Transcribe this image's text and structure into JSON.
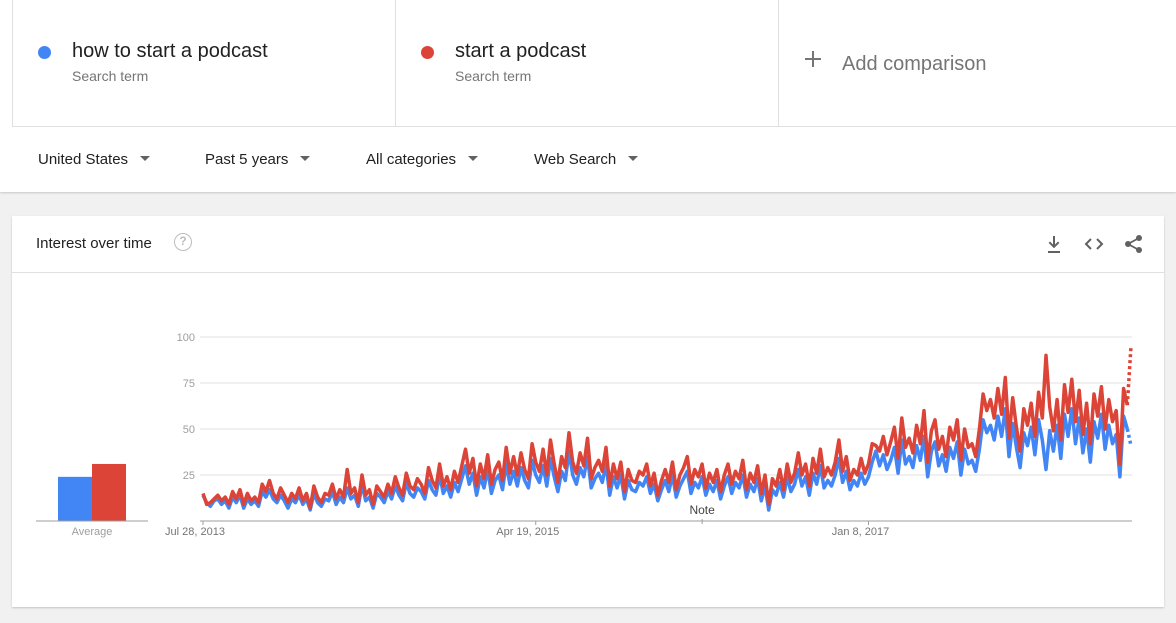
{
  "terms": [
    {
      "name": "how to start a podcast",
      "sub": "Search term",
      "color": "#4285f4"
    },
    {
      "name": "start a podcast",
      "sub": "Search term",
      "color": "#db4437"
    }
  ],
  "add_comparison": "Add comparison",
  "filters": {
    "region": "United States",
    "time": "Past 5 years",
    "category": "All categories",
    "search_type": "Web Search"
  },
  "card": {
    "title": "Interest over time",
    "help_glyph": "?",
    "tools": [
      "download-icon",
      "embed-code-icon",
      "share-icon"
    ]
  },
  "chart_data": {
    "type": "line",
    "y_ticks": [
      25,
      50,
      75,
      100
    ],
    "ylim": [
      0,
      100
    ],
    "x_ticks": [
      {
        "label": "Jul 28, 2013",
        "x": 0
      },
      {
        "label": "Apr 19, 2015",
        "x": 90
      },
      {
        "label": "Jan 8, 2017",
        "x": 180
      }
    ],
    "annotation": {
      "label": "Note",
      "x": 135
    },
    "average": {
      "label": "Average",
      "values": [
        {
          "name": "how to start a podcast",
          "value": 24
        },
        {
          "name": "start a podcast",
          "value": 31
        }
      ]
    },
    "series": [
      {
        "name": "how to start a podcast",
        "color": "#4285f4",
        "values": [
          14,
          10,
          8,
          11,
          12,
          9,
          11,
          7,
          13,
          10,
          14,
          7,
          12,
          9,
          11,
          8,
          16,
          13,
          17,
          12,
          10,
          14,
          11,
          7,
          12,
          10,
          14,
          9,
          12,
          6,
          15,
          10,
          8,
          12,
          11,
          16,
          9,
          13,
          10,
          18,
          12,
          14,
          8,
          20,
          11,
          13,
          7,
          15,
          13,
          10,
          16,
          12,
          19,
          14,
          11,
          21,
          15,
          13,
          18,
          16,
          12,
          22,
          17,
          14,
          25,
          15,
          19,
          13,
          21,
          16,
          23,
          30,
          20,
          26,
          14,
          24,
          18,
          28,
          15,
          22,
          25,
          17,
          31,
          20,
          27,
          19,
          29,
          22,
          18,
          33,
          25,
          21,
          30,
          19,
          34,
          24,
          16,
          27,
          22,
          38,
          25,
          20,
          29,
          24,
          35,
          18,
          23,
          26,
          21,
          31,
          14,
          24,
          18,
          25,
          12,
          22,
          17,
          16,
          21,
          19,
          24,
          15,
          20,
          11,
          17,
          22,
          16,
          25,
          13,
          19,
          23,
          27,
          15,
          21,
          18,
          24,
          14,
          20,
          16,
          22,
          12,
          19,
          24,
          15,
          21,
          18,
          25,
          13,
          20,
          16,
          23,
          11,
          19,
          6,
          17,
          14,
          21,
          13,
          24,
          16,
          20,
          28,
          19,
          24,
          14,
          26,
          20,
          30,
          18,
          22,
          19,
          25,
          34,
          21,
          27,
          17,
          22,
          19,
          26,
          20,
          24,
          32,
          38,
          30,
          36,
          28,
          33,
          40,
          26,
          44,
          31,
          35,
          29,
          41,
          33,
          46,
          24,
          38,
          43,
          30,
          36,
          27,
          40,
          34,
          43,
          25,
          39,
          31,
          33,
          27,
          39,
          55,
          48,
          52,
          44,
          57,
          46,
          61,
          35,
          53,
          40,
          29,
          48,
          41,
          51,
          36,
          55,
          44,
          28,
          49,
          38,
          52,
          34,
          58,
          46,
          61,
          42,
          56,
          37,
          50,
          32,
          54,
          45,
          58,
          39,
          52,
          42,
          47,
          24,
          57,
          50,
          41
        ]
      },
      {
        "name": "start a podcast",
        "color": "#db4437",
        "values": [
          15,
          9,
          10,
          12,
          14,
          11,
          13,
          9,
          16,
          12,
          17,
          9,
          15,
          11,
          13,
          10,
          20,
          16,
          22,
          15,
          12,
          18,
          14,
          10,
          15,
          12,
          18,
          11,
          15,
          7,
          19,
          13,
          10,
          15,
          14,
          20,
          12,
          17,
          13,
          28,
          15,
          18,
          10,
          25,
          14,
          17,
          9,
          19,
          16,
          13,
          20,
          15,
          24,
          18,
          14,
          26,
          19,
          17,
          23,
          20,
          15,
          29,
          22,
          18,
          31,
          19,
          24,
          17,
          27,
          21,
          30,
          39,
          26,
          34,
          19,
          31,
          23,
          36,
          20,
          28,
          32,
          22,
          40,
          26,
          35,
          25,
          37,
          28,
          23,
          42,
          32,
          27,
          39,
          25,
          44,
          31,
          21,
          35,
          29,
          48,
          32,
          26,
          37,
          30,
          45,
          23,
          29,
          33,
          27,
          40,
          19,
          31,
          23,
          32,
          16,
          28,
          22,
          21,
          27,
          25,
          31,
          19,
          26,
          14,
          22,
          28,
          21,
          32,
          17,
          25,
          29,
          35,
          20,
          28,
          24,
          31,
          18,
          26,
          21,
          28,
          16,
          25,
          31,
          20,
          27,
          23,
          33,
          17,
          26,
          21,
          30,
          15,
          25,
          9,
          23,
          19,
          28,
          17,
          31,
          21,
          26,
          37,
          25,
          31,
          19,
          34,
          26,
          39,
          24,
          29,
          25,
          32,
          44,
          27,
          35,
          22,
          28,
          25,
          34,
          26,
          31,
          42,
          41,
          38,
          46,
          36,
          43,
          51,
          34,
          56,
          40,
          45,
          37,
          52,
          42,
          60,
          32,
          49,
          55,
          39,
          46,
          35,
          51,
          44,
          55,
          33,
          50,
          40,
          42,
          35,
          50,
          69,
          60,
          66,
          56,
          72,
          58,
          78,
          45,
          67,
          51,
          38,
          61,
          52,
          64,
          46,
          70,
          56,
          90,
          62,
          49,
          66,
          44,
          74,
          59,
          77,
          54,
          71,
          47,
          64,
          42,
          69,
          57,
          73,
          50,
          66,
          54,
          60,
          31,
          72,
          63,
          95
        ]
      }
    ]
  }
}
